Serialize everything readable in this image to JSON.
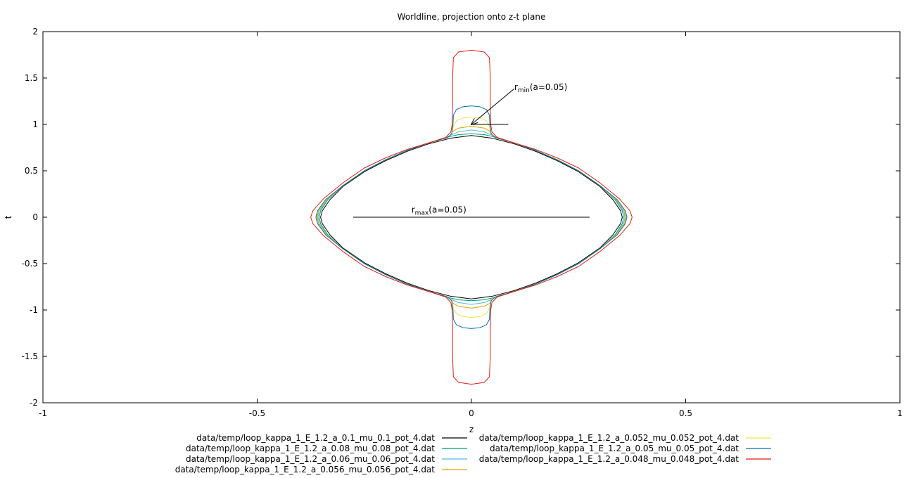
{
  "chart_data": {
    "type": "line",
    "title": "Worldline, projection onto z-t plane",
    "xlabel": "z",
    "ylabel": "t",
    "xlim": [
      -1,
      1
    ],
    "ylim": [
      -2,
      2
    ],
    "x_ticks": [
      -1,
      -0.5,
      0,
      0.5,
      1
    ],
    "x_tick_labels": [
      "-1",
      "-0.5",
      "0",
      "0.5",
      "1"
    ],
    "y_ticks": [
      -2,
      -1.5,
      -1,
      -0.5,
      0,
      0.5,
      1,
      1.5,
      2
    ],
    "y_tick_labels": [
      "-2",
      "-1.5",
      "-1",
      "-0.5",
      "0",
      "0.5",
      "1",
      "1.5",
      "2"
    ],
    "grid": false,
    "legend_position": "bottom",
    "series": [
      {
        "name": "data/temp/loop_kappa_1_E_1.2_a_0.1_mu_0.1_pot_4.dat",
        "color": "#000000",
        "points_upper_right": [
          [
            0,
            0.88
          ],
          [
            0.05,
            0.85
          ],
          [
            0.1,
            0.79
          ],
          [
            0.15,
            0.71
          ],
          [
            0.2,
            0.61
          ],
          [
            0.25,
            0.49
          ],
          [
            0.3,
            0.33
          ],
          [
            0.33,
            0.19
          ],
          [
            0.348,
            0.07
          ],
          [
            0.352,
            0
          ]
        ]
      },
      {
        "name": "data/temp/loop_kappa_1_E_1.2_a_0.08_mu_0.08_pot_4.dat",
        "color": "#009e73",
        "points_upper_right": [
          [
            0,
            0.9
          ],
          [
            0.03,
            0.89
          ],
          [
            0.05,
            0.87
          ],
          [
            0.1,
            0.8
          ],
          [
            0.15,
            0.72
          ],
          [
            0.2,
            0.62
          ],
          [
            0.25,
            0.5
          ],
          [
            0.3,
            0.34
          ],
          [
            0.335,
            0.19
          ],
          [
            0.352,
            0.07
          ],
          [
            0.355,
            0
          ]
        ]
      },
      {
        "name": "data/temp/loop_kappa_1_E_1.2_a_0.06_mu_0.06_pot_4.dat",
        "color": "#56b4e9",
        "points_upper_right": [
          [
            0,
            0.94
          ],
          [
            0.03,
            0.92
          ],
          [
            0.045,
            0.89
          ],
          [
            0.06,
            0.86
          ],
          [
            0.1,
            0.8
          ],
          [
            0.15,
            0.72
          ],
          [
            0.2,
            0.62
          ],
          [
            0.25,
            0.5
          ],
          [
            0.3,
            0.34
          ],
          [
            0.337,
            0.19
          ],
          [
            0.355,
            0.07
          ],
          [
            0.358,
            0
          ]
        ]
      },
      {
        "name": "data/temp/loop_kappa_1_E_1.2_a_0.056_mu_0.056_pot_4.dat",
        "color": "#e69f00",
        "points_upper_right": [
          [
            0,
            0.98
          ],
          [
            0.03,
            0.96
          ],
          [
            0.042,
            0.93
          ],
          [
            0.05,
            0.88
          ],
          [
            0.06,
            0.85
          ],
          [
            0.1,
            0.8
          ],
          [
            0.15,
            0.72
          ],
          [
            0.2,
            0.62
          ],
          [
            0.25,
            0.5
          ],
          [
            0.3,
            0.34
          ],
          [
            0.338,
            0.19
          ],
          [
            0.357,
            0.07
          ],
          [
            0.36,
            0
          ]
        ]
      },
      {
        "name": "data/temp/loop_kappa_1_E_1.2_a_0.052_mu_0.052_pot_4.dat",
        "color": "#f0e442",
        "points_upper_right": [
          [
            0,
            1.08
          ],
          [
            0.02,
            1.07
          ],
          [
            0.035,
            1.04
          ],
          [
            0.042,
            0.98
          ],
          [
            0.045,
            0.9
          ],
          [
            0.055,
            0.86
          ],
          [
            0.1,
            0.8
          ],
          [
            0.15,
            0.72
          ],
          [
            0.2,
            0.62
          ],
          [
            0.25,
            0.5
          ],
          [
            0.3,
            0.34
          ],
          [
            0.339,
            0.19
          ],
          [
            0.358,
            0.07
          ],
          [
            0.362,
            0
          ]
        ]
      },
      {
        "name": "data/temp/loop_kappa_1_E_1.2_a_0.05_mu_0.05_pot_4.dat",
        "color": "#0072b2",
        "points_upper_right": [
          [
            0,
            1.2
          ],
          [
            0.02,
            1.19
          ],
          [
            0.035,
            1.16
          ],
          [
            0.042,
            1.1
          ],
          [
            0.043,
            1.0
          ],
          [
            0.046,
            0.9
          ],
          [
            0.055,
            0.86
          ],
          [
            0.1,
            0.8
          ],
          [
            0.15,
            0.72
          ],
          [
            0.2,
            0.62
          ],
          [
            0.25,
            0.5
          ],
          [
            0.3,
            0.34
          ],
          [
            0.34,
            0.19
          ],
          [
            0.359,
            0.07
          ],
          [
            0.363,
            0
          ]
        ]
      },
      {
        "name": "data/temp/loop_kappa_1_E_1.2_a_0.048_mu_0.048_pot_4.dat",
        "color": "#e51e10",
        "points_upper_right": [
          [
            0,
            1.8
          ],
          [
            0.03,
            1.78
          ],
          [
            0.042,
            1.72
          ],
          [
            0.044,
            1.5
          ],
          [
            0.044,
            1.2
          ],
          [
            0.045,
            1.0
          ],
          [
            0.048,
            0.92
          ],
          [
            0.06,
            0.86
          ],
          [
            0.1,
            0.8
          ],
          [
            0.15,
            0.73
          ],
          [
            0.2,
            0.64
          ],
          [
            0.25,
            0.53
          ],
          [
            0.3,
            0.37
          ],
          [
            0.345,
            0.2
          ],
          [
            0.37,
            0.07
          ],
          [
            0.375,
            0
          ]
        ]
      }
    ],
    "annotations": [
      {
        "name": "rmin",
        "label_main": "r",
        "label_sub": "min",
        "label_rest": "(a=0.05)",
        "text_at": [
          0.1,
          1.4
        ],
        "arrow_from": [
          0.1,
          1.4
        ],
        "arrow_to": [
          0,
          1.0
        ],
        "segment": [
          [
            0,
            1.0
          ],
          [
            0.086,
            1.0
          ]
        ]
      },
      {
        "name": "rmax",
        "label_main": "r",
        "label_sub": "max",
        "label_rest": "(a=0.05)",
        "text_at": [
          -0.14,
          0.08
        ],
        "segment": [
          [
            -0.276,
            0
          ],
          [
            0.276,
            0
          ]
        ]
      }
    ]
  }
}
